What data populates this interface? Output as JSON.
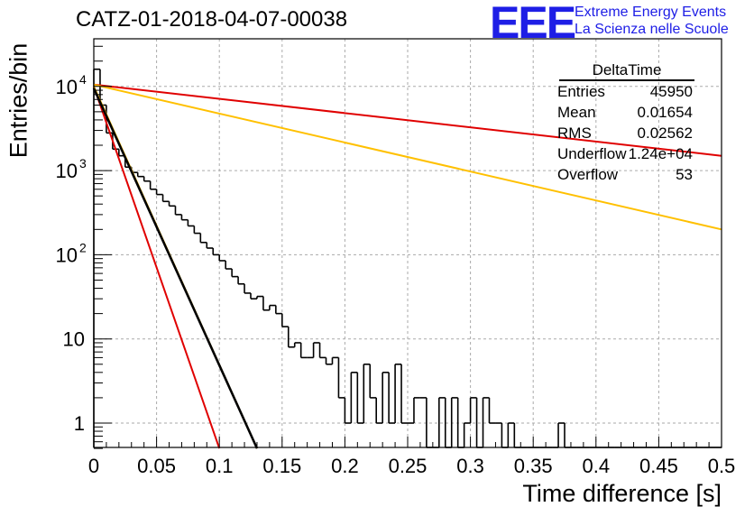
{
  "title": "CATZ-01-2018-04-07-00038",
  "logo": {
    "mark": "EEE",
    "line1": "Extreme Energy Events",
    "line2": "La Scienza nelle Scuole",
    "color": "#1e1ee6"
  },
  "stats_box": {
    "title": "DeltaTime",
    "rows": [
      {
        "key": "Entries",
        "value": "45950"
      },
      {
        "key": "Mean",
        "value": "0.01654"
      },
      {
        "key": "RMS",
        "value": "0.02562"
      },
      {
        "key": "Underflow",
        "value": "1.24e+04"
      },
      {
        "key": "Overflow",
        "value": "53"
      }
    ]
  },
  "chart_data": {
    "type": "line",
    "xlabel": "Time difference [s]",
    "ylabel": "Entries/bin",
    "xlim": [
      0,
      0.5
    ],
    "ylim": [
      0.5,
      30000
    ],
    "yscale": "log",
    "grid": true,
    "x_ticks": [
      "0",
      "0.05",
      "0.1",
      "0.15",
      "0.2",
      "0.25",
      "0.3",
      "0.35",
      "0.4",
      "0.45",
      "0.5"
    ],
    "y_ticks": [
      {
        "value": 1,
        "label": "1"
      },
      {
        "value": 10,
        "label": "10"
      },
      {
        "value": 100,
        "label": "10",
        "exp": "2"
      },
      {
        "value": 1000,
        "label": "10",
        "exp": "3"
      },
      {
        "value": 10000,
        "label": "10",
        "exp": "4"
      }
    ],
    "histogram": {
      "bin_width": 0.005,
      "color": "#000000",
      "values": [
        16000,
        6000,
        2800,
        1800,
        1500,
        1100,
        950,
        850,
        750,
        600,
        520,
        430,
        380,
        300,
        260,
        220,
        180,
        140,
        120,
        100,
        85,
        68,
        55,
        45,
        35,
        30,
        32,
        22,
        25,
        20,
        14,
        8,
        9,
        6,
        6,
        9,
        6,
        5,
        6,
        2,
        1,
        4,
        1,
        5,
        2,
        1,
        4,
        1,
        5,
        1,
        1,
        2,
        2,
        0,
        0,
        2,
        0,
        2,
        0,
        1,
        2,
        0,
        2,
        1,
        1,
        0,
        1,
        0,
        0,
        0,
        0,
        0,
        0,
        0,
        1,
        0,
        0,
        0,
        0,
        0,
        0,
        0,
        0,
        0,
        0,
        0,
        0,
        0,
        0,
        0,
        0,
        0,
        0,
        0,
        0,
        0,
        0,
        0,
        0,
        0
      ]
    },
    "fits": [
      {
        "color": "#e00000",
        "points": [
          [
            0,
            10500
          ],
          [
            0.5,
            1500
          ]
        ]
      },
      {
        "color": "#ffc000",
        "points": [
          [
            0,
            10500
          ],
          [
            0.5,
            200
          ]
        ]
      },
      {
        "color": "#e00000",
        "points": [
          [
            0,
            10000
          ],
          [
            0.1,
            0.5
          ]
        ]
      },
      {
        "color": "#ffc000",
        "points": [
          [
            0,
            10000
          ],
          [
            0.13,
            0.5
          ]
        ]
      },
      {
        "color": "#000000",
        "points": [
          [
            0,
            9500
          ],
          [
            0.13,
            0.5
          ]
        ]
      }
    ]
  }
}
